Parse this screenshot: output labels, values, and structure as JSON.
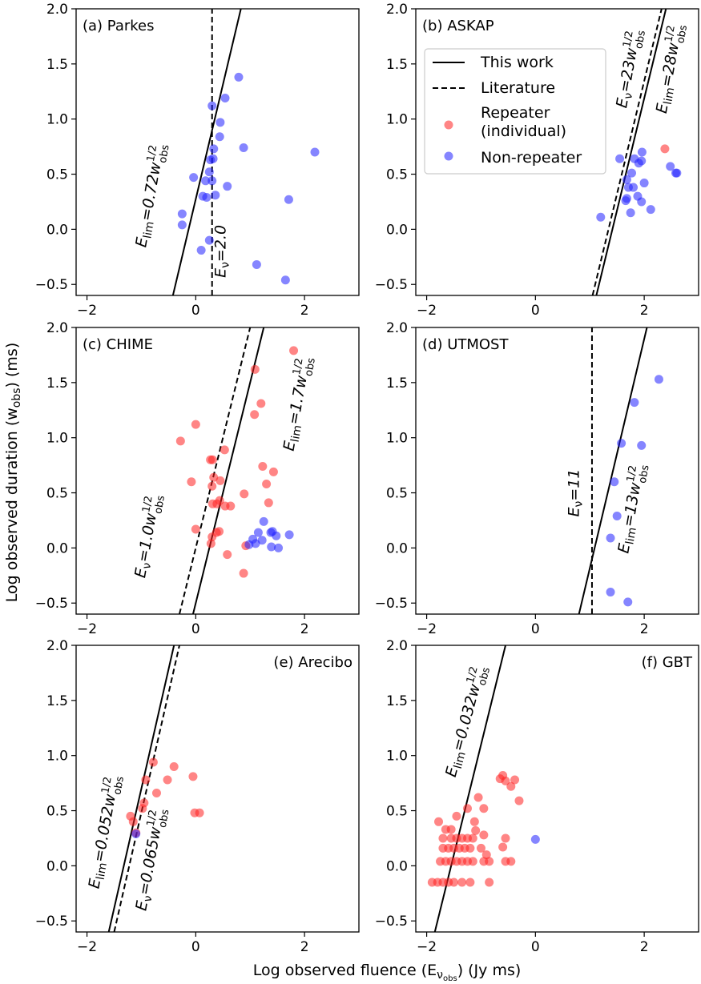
{
  "figure": {
    "xlabel": "Log observed fluence (E",
    "xlabel_sub": "ν",
    "xlabel_subsub": "obs",
    "xlabel_tail": ") (Jy ms)",
    "ylabel": "Log observed duration (w",
    "ylabel_sub": "obs",
    "ylabel_tail": ") (ms)"
  },
  "legend": {
    "items": [
      {
        "label": "This work",
        "kind": "solid"
      },
      {
        "label": "Literature",
        "kind": "dashed"
      },
      {
        "label": "Repeater",
        "label2": "(individual)",
        "kind": "repeater"
      },
      {
        "label": "Non-repeater",
        "kind": "nonrepeater"
      }
    ]
  },
  "colors": {
    "repeater": "#ff2020",
    "nonrepeater": "#2020ff",
    "line": "#000000"
  },
  "chart_data": [
    {
      "type": "scatter",
      "title": "(a) Parkes",
      "xlim": [
        -2.2,
        3.0
      ],
      "ylim": [
        -0.6,
        2.0
      ],
      "xticks": [
        -2,
        0,
        2
      ],
      "yticks": [
        -0.5,
        0.0,
        0.5,
        1.0,
        1.5,
        2.0
      ],
      "series": [
        {
          "name": "Non-repeater",
          "points": [
            [
              0.3,
              1.12
            ],
            [
              0.54,
              1.19
            ],
            [
              0.79,
              1.38
            ],
            [
              0.45,
              0.97
            ],
            [
              0.44,
              0.84
            ],
            [
              0.33,
              0.73
            ],
            [
              0.88,
              0.74
            ],
            [
              0.32,
              0.64
            ],
            [
              0.27,
              0.63
            ],
            [
              2.19,
              0.7
            ],
            [
              0.25,
              0.52
            ],
            [
              -0.04,
              0.47
            ],
            [
              0.18,
              0.44
            ],
            [
              0.3,
              0.44
            ],
            [
              0.58,
              0.39
            ],
            [
              0.13,
              0.3
            ],
            [
              0.2,
              0.29
            ],
            [
              0.36,
              0.31
            ],
            [
              1.71,
              0.27
            ],
            [
              -0.25,
              0.14
            ],
            [
              -0.25,
              0.04
            ],
            [
              0.25,
              -0.1
            ],
            [
              0.1,
              -0.19
            ],
            [
              1.12,
              -0.32
            ],
            [
              1.65,
              -0.46
            ]
          ]
        }
      ],
      "lines": [
        {
          "style": "solid",
          "x1": -0.42,
          "y1": -0.6,
          "x2": 0.83,
          "y2": 2.0
        },
        {
          "style": "dashed",
          "x1": 0.3,
          "y1": -0.6,
          "x2": 0.3,
          "y2": 2.0
        }
      ],
      "annotations": [
        {
          "main": "E",
          "sub": "lim",
          "rest": "=0.72w",
          "sup": "1/2",
          "sub2": "obs",
          "x": -0.75,
          "y": 0.3,
          "angle": -80
        },
        {
          "main": "E",
          "sub": "ν",
          "rest": "=2.0",
          "sup": "",
          "sub2": "",
          "x": 0.55,
          "y": -0.2,
          "angle": -90
        }
      ]
    },
    {
      "type": "scatter",
      "title": "(b) ASKAP",
      "xlim": [
        -2.2,
        3.0
      ],
      "ylim": [
        -0.6,
        2.0
      ],
      "xticks": [
        -2,
        0,
        2
      ],
      "yticks": [
        -0.5,
        0.0,
        0.5,
        1.0,
        1.5,
        2.0
      ],
      "series": [
        {
          "name": "Repeater (individual)",
          "points": [
            [
              2.38,
              0.73
            ]
          ]
        },
        {
          "name": "Non-repeater",
          "points": [
            [
              1.96,
              0.7
            ],
            [
              1.95,
              0.62
            ],
            [
              2.48,
              0.57
            ],
            [
              2.6,
              0.51
            ],
            [
              2.58,
              0.51
            ],
            [
              1.55,
              0.64
            ],
            [
              1.82,
              0.64
            ],
            [
              1.9,
              0.6
            ],
            [
              1.77,
              0.51
            ],
            [
              1.68,
              0.45
            ],
            [
              2.0,
              0.42
            ],
            [
              1.8,
              0.38
            ],
            [
              1.71,
              0.38
            ],
            [
              1.88,
              0.3
            ],
            [
              1.68,
              0.28
            ],
            [
              1.66,
              0.26
            ],
            [
              1.95,
              0.25
            ],
            [
              2.12,
              0.18
            ],
            [
              1.75,
              0.15
            ],
            [
              1.2,
              0.11
            ]
          ]
        }
      ],
      "lines": [
        {
          "style": "solid",
          "x1": 1.12,
          "y1": -0.6,
          "x2": 2.4,
          "y2": 2.0
        },
        {
          "style": "dashed",
          "x1": 1.05,
          "y1": -0.6,
          "x2": 2.32,
          "y2": 2.0
        }
      ],
      "annotations": [
        {
          "main": "E",
          "sub": "ν",
          "rest": "=23w",
          "sup": "1/2",
          "sub2": "obs",
          "x": 1.8,
          "y": 1.45,
          "angle": -80
        },
        {
          "main": "E",
          "sub": "lim",
          "rest": "=28w",
          "sup": "1/2",
          "sub2": "obs",
          "x": 2.55,
          "y": 1.45,
          "angle": -80
        }
      ]
    },
    {
      "type": "scatter",
      "title": "(c) CHIME",
      "xlim": [
        -2.2,
        3.0
      ],
      "ylim": [
        -0.6,
        2.0
      ],
      "xticks": [
        -2,
        0,
        2
      ],
      "yticks": [
        -0.5,
        0.0,
        0.5,
        1.0,
        1.5,
        2.0
      ],
      "series": [
        {
          "name": "Repeater (individual)",
          "points": [
            [
              1.09,
              1.62
            ],
            [
              1.8,
              1.79
            ],
            [
              1.2,
              1.31
            ],
            [
              1.08,
              1.21
            ],
            [
              0.0,
              1.12
            ],
            [
              -0.28,
              0.97
            ],
            [
              0.53,
              0.89
            ],
            [
              0.27,
              0.8
            ],
            [
              0.31,
              0.8
            ],
            [
              1.23,
              0.74
            ],
            [
              1.43,
              0.69
            ],
            [
              0.33,
              0.64
            ],
            [
              0.45,
              0.61
            ],
            [
              -0.08,
              0.6
            ],
            [
              1.3,
              0.58
            ],
            [
              0.3,
              0.56
            ],
            [
              0.89,
              0.49
            ],
            [
              0.44,
              0.43
            ],
            [
              0.39,
              0.4
            ],
            [
              0.31,
              0.4
            ],
            [
              0.54,
              0.38
            ],
            [
              0.64,
              0.38
            ],
            [
              1.34,
              0.41
            ],
            [
              0.0,
              0.17
            ],
            [
              0.43,
              0.15
            ],
            [
              0.38,
              0.14
            ],
            [
              0.3,
              0.1
            ],
            [
              0.28,
              0.04
            ],
            [
              0.92,
              0.02
            ],
            [
              0.58,
              -0.06
            ],
            [
              0.88,
              -0.23
            ]
          ]
        },
        {
          "name": "Non-repeater",
          "points": [
            [
              1.25,
              0.24
            ],
            [
              1.41,
              0.15
            ],
            [
              1.38,
              0.14
            ],
            [
              1.15,
              0.14
            ],
            [
              1.72,
              0.12
            ],
            [
              1.48,
              0.11
            ],
            [
              1.05,
              0.08
            ],
            [
              1.22,
              0.07
            ],
            [
              1.1,
              0.04
            ],
            [
              0.98,
              0.03
            ],
            [
              1.39,
              0.01
            ],
            [
              1.52,
              0.0
            ]
          ]
        }
      ],
      "lines": [
        {
          "style": "solid",
          "x1": -0.05,
          "y1": -0.6,
          "x2": 1.25,
          "y2": 2.0
        },
        {
          "style": "dashed",
          "x1": -0.3,
          "y1": -0.6,
          "x2": 1.0,
          "y2": 2.0
        }
      ],
      "annotations": [
        {
          "main": "E",
          "sub": "ν",
          "rest": "=1.0w",
          "sup": "1/2",
          "sub2": "obs",
          "x": -0.8,
          "y": 0.1,
          "angle": -80
        },
        {
          "main": "E",
          "sub": "lim",
          "rest": "=1.7w",
          "sup": "1/2",
          "sub2": "obs",
          "x": 1.95,
          "y": 1.3,
          "angle": -80
        }
      ]
    },
    {
      "type": "scatter",
      "title": "(d) UTMOST",
      "xlim": [
        -2.2,
        3.0
      ],
      "ylim": [
        -0.6,
        2.0
      ],
      "xticks": [
        -2,
        0,
        2
      ],
      "yticks": [
        -0.5,
        0.0,
        0.5,
        1.0,
        1.5,
        2.0
      ],
      "series": [
        {
          "name": "Non-repeater",
          "points": [
            [
              2.27,
              1.53
            ],
            [
              1.82,
              1.32
            ],
            [
              1.58,
              0.95
            ],
            [
              1.95,
              0.93
            ],
            [
              1.45,
              0.6
            ],
            [
              1.5,
              0.29
            ],
            [
              1.38,
              0.09
            ],
            [
              1.38,
              -0.4
            ],
            [
              1.7,
              -0.49
            ]
          ]
        }
      ],
      "lines": [
        {
          "style": "solid",
          "x1": 0.8,
          "y1": -0.6,
          "x2": 2.05,
          "y2": 2.0
        },
        {
          "style": "dashed",
          "x1": 1.04,
          "y1": -0.6,
          "x2": 1.04,
          "y2": 2.0
        }
      ],
      "annotations": [
        {
          "main": "E",
          "sub": "ν",
          "rest": "=11",
          "sup": "",
          "sub2": "",
          "x": 0.8,
          "y": 0.5,
          "angle": -90
        },
        {
          "main": "E",
          "sub": "lim",
          "rest": "=13w",
          "sup": "1/2",
          "sub2": "obs",
          "x": 1.85,
          "y": 0.35,
          "angle": -80
        }
      ]
    },
    {
      "type": "scatter",
      "title": "(e) Arecibo",
      "xlim": [
        -2.2,
        3.0
      ],
      "ylim": [
        -0.6,
        2.0
      ],
      "xticks": [
        -2,
        0,
        2
      ],
      "yticks": [
        -0.5,
        0.0,
        0.5,
        1.0,
        1.5,
        2.0
      ],
      "series": [
        {
          "name": "Repeater (individual)",
          "points": [
            [
              -0.78,
              0.94
            ],
            [
              -0.4,
              0.9
            ],
            [
              -0.05,
              0.81
            ],
            [
              -0.92,
              0.78
            ],
            [
              -0.52,
              0.78
            ],
            [
              -0.72,
              0.66
            ],
            [
              -0.95,
              0.57
            ],
            [
              -0.98,
              0.52
            ],
            [
              -0.02,
              0.48
            ],
            [
              0.07,
              0.48
            ],
            [
              -1.2,
              0.45
            ],
            [
              -1.15,
              0.4
            ],
            [
              -1.1,
              0.3
            ]
          ]
        },
        {
          "name": "Non-repeater",
          "points": [
            [
              -1.1,
              0.29
            ]
          ]
        }
      ],
      "lines": [
        {
          "style": "solid",
          "x1": -1.6,
          "y1": -0.6,
          "x2": -0.4,
          "y2": 2.0
        },
        {
          "style": "dashed",
          "x1": -1.5,
          "y1": -0.6,
          "x2": -0.3,
          "y2": 2.0
        }
      ],
      "annotations": [
        {
          "main": "E",
          "sub": "lim",
          "rest": "=0.052w",
          "sup": "1/2",
          "sub2": "obs",
          "x": -1.6,
          "y": 0.3,
          "angle": -80
        },
        {
          "main": "E",
          "sub": "ν",
          "rest": "=0.065w",
          "sup": "1/2",
          "sub2": "obs",
          "x": -0.75,
          "y": 0.05,
          "angle": -80
        }
      ]
    },
    {
      "type": "scatter",
      "title": "(f) GBT",
      "xlim": [
        -2.2,
        3.0
      ],
      "ylim": [
        -0.6,
        2.0
      ],
      "xticks": [
        -2,
        0,
        2
      ],
      "yticks": [
        -0.5,
        0.0,
        0.5,
        1.0,
        1.5,
        2.0
      ],
      "series": [
        {
          "name": "Repeater (individual)",
          "points": [
            [
              -0.6,
              0.82
            ],
            [
              -0.65,
              0.79
            ],
            [
              -0.55,
              0.77
            ],
            [
              -0.38,
              0.78
            ],
            [
              -0.45,
              0.72
            ],
            [
              -1.05,
              0.62
            ],
            [
              -0.3,
              0.59
            ],
            [
              -1.25,
              0.52
            ],
            [
              -0.95,
              0.52
            ],
            [
              -1.78,
              0.4
            ],
            [
              -1.12,
              0.4
            ],
            [
              -1.45,
              0.45
            ],
            [
              -1.1,
              0.32
            ],
            [
              -1.55,
              0.33
            ],
            [
              -1.65,
              0.33
            ],
            [
              -1.7,
              0.25
            ],
            [
              -1.55,
              0.25
            ],
            [
              -1.45,
              0.25
            ],
            [
              -1.35,
              0.25
            ],
            [
              -1.25,
              0.25
            ],
            [
              -1.15,
              0.25
            ],
            [
              -0.95,
              0.28
            ],
            [
              -0.55,
              0.25
            ],
            [
              -1.7,
              0.16
            ],
            [
              -1.6,
              0.16
            ],
            [
              -1.5,
              0.16
            ],
            [
              -1.4,
              0.16
            ],
            [
              -1.3,
              0.16
            ],
            [
              -1.2,
              0.16
            ],
            [
              -1.0,
              0.16
            ],
            [
              -0.6,
              0.17
            ],
            [
              -0.9,
              0.1
            ],
            [
              -1.75,
              0.04
            ],
            [
              -1.65,
              0.04
            ],
            [
              -1.55,
              0.04
            ],
            [
              -1.45,
              0.04
            ],
            [
              -1.35,
              0.04
            ],
            [
              -1.25,
              0.04
            ],
            [
              -1.15,
              0.04
            ],
            [
              -0.95,
              0.04
            ],
            [
              -0.85,
              0.04
            ],
            [
              -0.55,
              0.04
            ],
            [
              -0.45,
              0.04
            ],
            [
              -1.9,
              -0.15
            ],
            [
              -1.8,
              -0.15
            ],
            [
              -1.7,
              -0.15
            ],
            [
              -1.6,
              -0.15
            ],
            [
              -1.5,
              -0.15
            ],
            [
              -1.35,
              -0.15
            ],
            [
              -1.2,
              -0.15
            ],
            [
              -0.85,
              -0.15
            ]
          ]
        },
        {
          "name": "Non-repeater",
          "points": [
            [
              0.0,
              0.24
            ]
          ]
        }
      ],
      "lines": [
        {
          "style": "solid",
          "x1": -1.85,
          "y1": -0.6,
          "x2": -0.55,
          "y2": 2.0
        }
      ],
      "annotations": [
        {
          "main": "E",
          "sub": "lim",
          "rest": "=0.032w",
          "sup": "1/2",
          "sub2": "obs",
          "x": -1.2,
          "y": 1.3,
          "angle": -75
        }
      ]
    }
  ]
}
